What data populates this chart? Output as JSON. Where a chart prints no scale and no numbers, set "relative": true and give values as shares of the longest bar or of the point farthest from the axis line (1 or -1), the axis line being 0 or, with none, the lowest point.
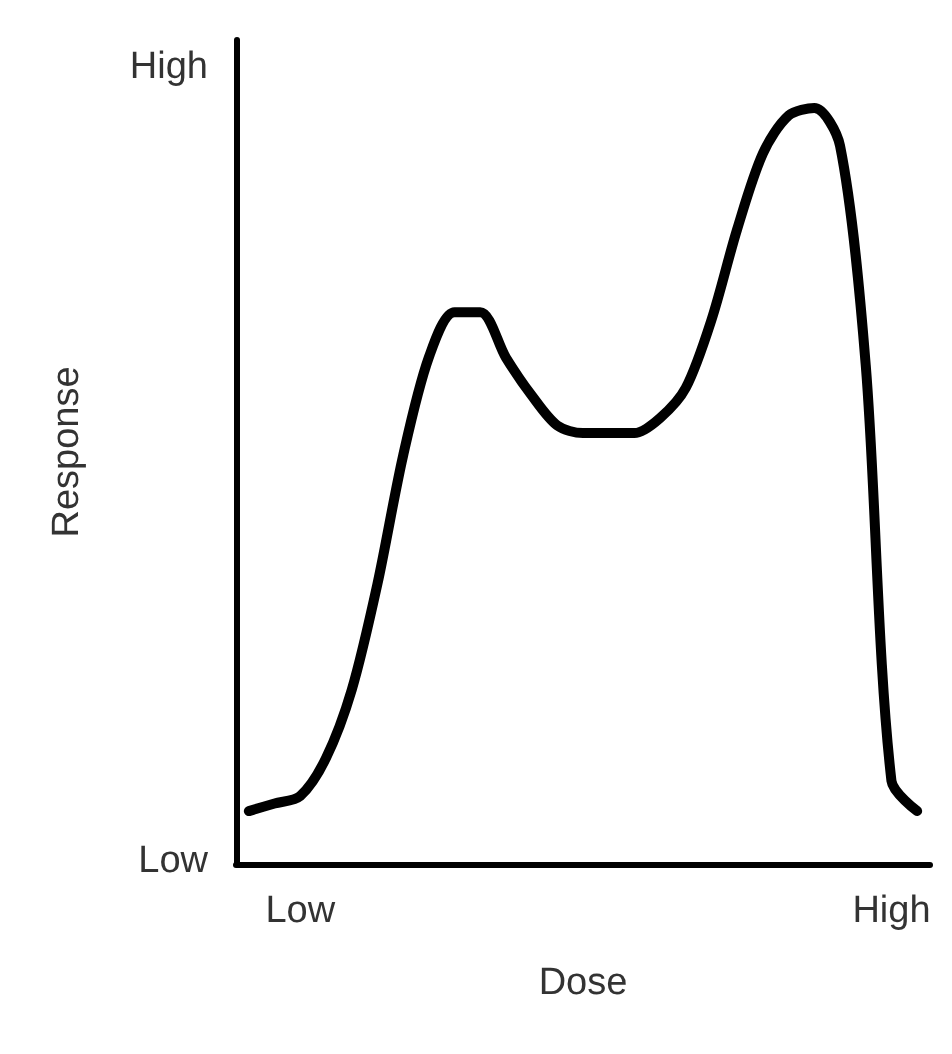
{
  "chart_data": {
    "type": "line",
    "xlabel": "Dose",
    "ylabel": "Response",
    "relative": true,
    "categories": [
      null,
      null,
      "Low",
      null,
      null,
      null,
      null,
      null,
      null,
      null,
      null,
      null,
      null,
      null,
      null,
      null,
      null,
      null,
      null,
      null,
      null,
      null,
      null,
      null,
      null,
      "High",
      null
    ],
    "values": [
      0.07,
      0.08,
      0.09,
      0.14,
      0.23,
      0.37,
      0.54,
      0.67,
      0.73,
      0.73,
      0.67,
      0.62,
      0.58,
      0.57,
      0.57,
      0.57,
      0.59,
      0.63,
      0.72,
      0.84,
      0.94,
      0.99,
      1,
      0.95,
      0.66,
      0.11,
      0.07
    ],
    "color": "#000000",
    "annotations": [
      "Low",
      "High"
    ],
    "grid": false,
    "marker": "none",
    "line_style": "solid"
  }
}
